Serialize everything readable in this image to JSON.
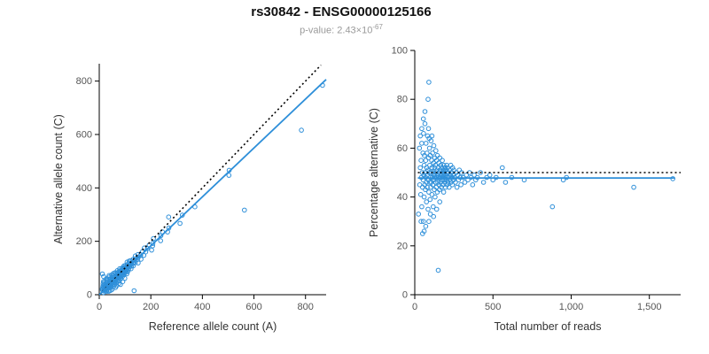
{
  "header": {
    "title": "rs30842 - ENSG00000125166",
    "pvalue_prefix": "p-value: 2.43×10",
    "pvalue_exponent": "-67"
  },
  "chart_data": {
    "point_color": "#2E8FD9",
    "note": "Two scatter plots of allele-specific expression. Shared underlying samples given as [total_reads, pct_alternative]. Left plot derives: alt = round(total*pct/100), ref = total - alt.",
    "samples_total_reads_pct_alternative": [
      [
        24,
        33
      ],
      [
        30,
        60
      ],
      [
        32,
        45
      ],
      [
        35,
        52
      ],
      [
        35,
        65
      ],
      [
        38,
        41
      ],
      [
        40,
        55
      ],
      [
        40,
        30
      ],
      [
        42,
        48
      ],
      [
        45,
        62
      ],
      [
        45,
        36
      ],
      [
        45,
        68
      ],
      [
        48,
        50
      ],
      [
        50,
        44
      ],
      [
        50,
        25
      ],
      [
        52,
        58
      ],
      [
        54,
        47
      ],
      [
        55,
        30
      ],
      [
        55,
        72
      ],
      [
        56,
        66
      ],
      [
        58,
        49
      ],
      [
        60,
        53
      ],
      [
        60,
        40
      ],
      [
        60,
        26
      ],
      [
        62,
        57
      ],
      [
        64,
        45
      ],
      [
        65,
        70
      ],
      [
        65,
        75
      ],
      [
        66,
        50
      ],
      [
        68,
        43
      ],
      [
        70,
        55
      ],
      [
        70,
        48
      ],
      [
        70,
        28
      ],
      [
        72,
        62
      ],
      [
        74,
        46
      ],
      [
        75,
        38
      ],
      [
        76,
        52
      ],
      [
        78,
        58
      ],
      [
        80,
        49
      ],
      [
        80,
        44
      ],
      [
        82,
        65
      ],
      [
        84,
        51
      ],
      [
        85,
        35
      ],
      [
        85,
        80
      ],
      [
        86,
        47
      ],
      [
        88,
        56
      ],
      [
        88,
        68
      ],
      [
        90,
        87
      ],
      [
        90,
        42
      ],
      [
        90,
        30
      ],
      [
        92,
        50
      ],
      [
        92,
        64
      ],
      [
        94,
        60
      ],
      [
        95,
        46
      ],
      [
        96,
        53
      ],
      [
        98,
        39
      ],
      [
        100,
        57
      ],
      [
        100,
        48
      ],
      [
        100,
        33
      ],
      [
        102,
        44
      ],
      [
        104,
        63
      ],
      [
        105,
        50
      ],
      [
        106,
        46
      ],
      [
        108,
        55
      ],
      [
        110,
        41
      ],
      [
        110,
        52
      ],
      [
        110,
        65
      ],
      [
        112,
        48
      ],
      [
        114,
        58
      ],
      [
        115,
        45
      ],
      [
        116,
        50
      ],
      [
        118,
        36
      ],
      [
        120,
        54
      ],
      [
        120,
        47
      ],
      [
        120,
        32
      ],
      [
        122,
        61
      ],
      [
        124,
        49
      ],
      [
        125,
        43
      ],
      [
        126,
        52
      ],
      [
        128,
        56
      ],
      [
        130,
        48
      ],
      [
        130,
        40
      ],
      [
        132,
        53
      ],
      [
        134,
        46
      ],
      [
        135,
        59
      ],
      [
        136,
        50
      ],
      [
        138,
        44
      ],
      [
        140,
        55
      ],
      [
        140,
        48
      ],
      [
        140,
        35
      ],
      [
        142,
        51
      ],
      [
        144,
        42
      ],
      [
        145,
        57
      ],
      [
        146,
        49
      ],
      [
        148,
        46
      ],
      [
        150,
        10
      ],
      [
        150,
        52
      ],
      [
        152,
        48
      ],
      [
        154,
        54
      ],
      [
        155,
        45
      ],
      [
        156,
        50
      ],
      [
        158,
        43
      ],
      [
        160,
        56
      ],
      [
        160,
        38
      ],
      [
        162,
        48
      ],
      [
        164,
        51
      ],
      [
        165,
        46
      ],
      [
        166,
        53
      ],
      [
        168,
        49
      ],
      [
        170,
        44
      ],
      [
        172,
        52
      ],
      [
        174,
        47
      ],
      [
        175,
        50
      ],
      [
        176,
        55
      ],
      [
        178,
        48
      ],
      [
        180,
        45
      ],
      [
        182,
        51
      ],
      [
        184,
        49
      ],
      [
        185,
        42
      ],
      [
        186,
        53
      ],
      [
        188,
        47
      ],
      [
        190,
        50
      ],
      [
        192,
        46
      ],
      [
        194,
        52
      ],
      [
        195,
        48
      ],
      [
        196,
        44
      ],
      [
        198,
        51
      ],
      [
        200,
        49
      ],
      [
        202,
        47
      ],
      [
        204,
        53
      ],
      [
        205,
        50
      ],
      [
        206,
        45
      ],
      [
        208,
        48
      ],
      [
        210,
        52
      ],
      [
        212,
        46
      ],
      [
        215,
        50
      ],
      [
        218,
        48
      ],
      [
        220,
        44
      ],
      [
        222,
        51
      ],
      [
        225,
        47
      ],
      [
        228,
        49
      ],
      [
        230,
        53
      ],
      [
        232,
        46
      ],
      [
        235,
        50
      ],
      [
        238,
        48
      ],
      [
        240,
        45
      ],
      [
        242,
        52
      ],
      [
        245,
        49
      ],
      [
        248,
        47
      ],
      [
        250,
        51
      ],
      [
        255,
        48
      ],
      [
        260,
        46
      ],
      [
        265,
        50
      ],
      [
        270,
        44
      ],
      [
        275,
        49
      ],
      [
        280,
        47
      ],
      [
        285,
        51
      ],
      [
        290,
        48
      ],
      [
        295,
        45
      ],
      [
        300,
        50
      ],
      [
        310,
        48
      ],
      [
        320,
        46
      ],
      [
        330,
        49
      ],
      [
        340,
        47
      ],
      [
        350,
        50
      ],
      [
        360,
        48
      ],
      [
        370,
        45
      ],
      [
        380,
        49
      ],
      [
        390,
        47
      ],
      [
        400,
        48
      ],
      [
        420,
        50
      ],
      [
        440,
        46
      ],
      [
        460,
        48
      ],
      [
        480,
        49
      ],
      [
        500,
        47
      ],
      [
        520,
        48
      ],
      [
        560,
        52
      ],
      [
        580,
        46
      ],
      [
        620,
        48
      ],
      [
        700,
        47
      ],
      [
        880,
        36
      ],
      [
        950,
        47
      ],
      [
        970,
        48
      ],
      [
        1400,
        44
      ],
      [
        1650,
        47.5
      ]
    ],
    "charts": [
      {
        "type": "scatter",
        "id": "ref-vs-alt",
        "xlabel": "Reference allele count (A)",
        "ylabel": "Alternative allele count (C)",
        "xlim": [
          0,
          880
        ],
        "ylim": [
          0,
          865
        ],
        "xtick_values": [
          0,
          200,
          400,
          600,
          800
        ],
        "xtick_labels": [
          "0",
          "200",
          "400",
          "600",
          "800"
        ],
        "ytick_values": [
          0,
          200,
          400,
          600,
          800
        ],
        "ytick_labels": [
          "0",
          "200",
          "400",
          "600",
          "800"
        ],
        "points_derivation": "x = total - round(total*pct/100), y = round(total*pct/100)",
        "lines": [
          {
            "name": "identity",
            "style": "dotted",
            "color": "#000000",
            "from": [
              0,
              0
            ],
            "to": [
              860,
              860
            ]
          },
          {
            "name": "fit",
            "style": "solid",
            "color": "#2E8FD9",
            "from": [
              0,
              0
            ],
            "to": [
              880,
              806
            ]
          }
        ]
      },
      {
        "type": "scatter",
        "id": "pct-vs-total",
        "xlabel": "Total number of reads",
        "ylabel": "Percentage alternative (C)",
        "xlim": [
          0,
          1700
        ],
        "ylim": [
          0,
          100
        ],
        "xtick_values": [
          0,
          500,
          1000,
          1500
        ],
        "xtick_labels": [
          "0",
          "500",
          "1,000",
          "1,500"
        ],
        "ytick_values": [
          0,
          20,
          40,
          60,
          80,
          100
        ],
        "ytick_labels": [
          "0",
          "20",
          "40",
          "60",
          "80",
          "100"
        ],
        "points_derivation": "x = total, y = pct",
        "lines": [
          {
            "name": "expected-50pct",
            "style": "dotted",
            "color": "#000000",
            "from": [
              20,
              50
            ],
            "to": [
              1700,
              50
            ]
          },
          {
            "name": "fit",
            "style": "solid",
            "color": "#2E8FD9",
            "from": [
              20,
              47.8
            ],
            "to": [
              1660,
              47.8
            ]
          }
        ]
      }
    ]
  }
}
